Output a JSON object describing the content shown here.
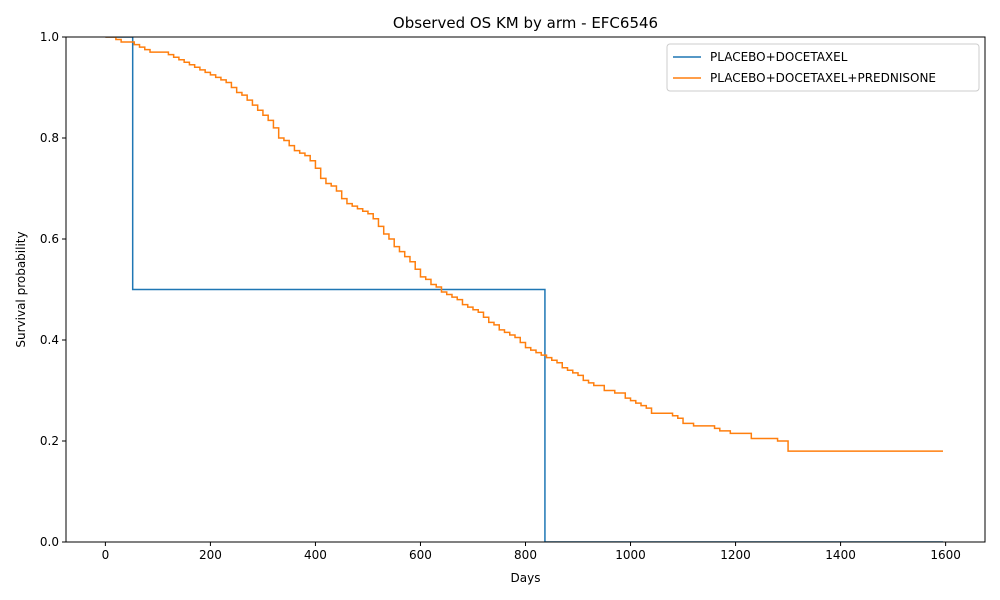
{
  "chart_data": {
    "type": "line",
    "step": "post",
    "title": "Observed OS KM by arm - EFC6546",
    "xlabel": "Days",
    "ylabel": "Survival probability",
    "xlim": [
      -75,
      1675
    ],
    "ylim": [
      0,
      1.0
    ],
    "xticks": [
      0,
      200,
      400,
      600,
      800,
      1000,
      1200,
      1400,
      1600
    ],
    "yticks": [
      0.0,
      0.2,
      0.4,
      0.6,
      0.8,
      1.0
    ],
    "xtick_labels": [
      "0",
      "200",
      "400",
      "600",
      "800",
      "1000",
      "1200",
      "1400",
      "1600"
    ],
    "ytick_labels": [
      "0.0",
      "0.2",
      "0.4",
      "0.6",
      "0.8",
      "1.0"
    ],
    "grid": false,
    "legend_position": "top-right",
    "series": [
      {
        "name": "PLACEBO+DOCETAXEL",
        "color": "#1f77b4",
        "x": [
          0,
          52,
          837,
          1595
        ],
        "y": [
          1.0,
          0.5,
          0.0,
          0.0
        ]
      },
      {
        "name": "PLACEBO+DOCETAXEL+PREDNISONE",
        "color": "#ff7f0e",
        "x": [
          0,
          20,
          30,
          40,
          55,
          65,
          75,
          85,
          95,
          120,
          130,
          140,
          150,
          160,
          170,
          180,
          190,
          200,
          210,
          220,
          230,
          240,
          250,
          260,
          270,
          280,
          290,
          300,
          310,
          320,
          330,
          340,
          350,
          360,
          370,
          380,
          390,
          400,
          410,
          420,
          430,
          440,
          450,
          460,
          470,
          480,
          490,
          500,
          510,
          520,
          530,
          540,
          550,
          560,
          570,
          580,
          590,
          600,
          610,
          620,
          630,
          640,
          650,
          660,
          670,
          680,
          690,
          700,
          710,
          720,
          730,
          740,
          750,
          760,
          770,
          780,
          790,
          800,
          810,
          820,
          830,
          840,
          850,
          860,
          870,
          880,
          890,
          900,
          910,
          920,
          930,
          950,
          970,
          990,
          1000,
          1010,
          1020,
          1030,
          1040,
          1060,
          1080,
          1090,
          1100,
          1120,
          1160,
          1170,
          1190,
          1230,
          1280,
          1300,
          1595
        ],
        "y": [
          1.0,
          0.995,
          0.99,
          0.99,
          0.985,
          0.98,
          0.975,
          0.97,
          0.97,
          0.965,
          0.96,
          0.955,
          0.95,
          0.945,
          0.94,
          0.935,
          0.93,
          0.925,
          0.92,
          0.915,
          0.91,
          0.9,
          0.89,
          0.885,
          0.875,
          0.865,
          0.855,
          0.845,
          0.835,
          0.82,
          0.8,
          0.795,
          0.785,
          0.775,
          0.77,
          0.765,
          0.755,
          0.74,
          0.72,
          0.71,
          0.705,
          0.695,
          0.68,
          0.67,
          0.665,
          0.66,
          0.655,
          0.65,
          0.64,
          0.625,
          0.61,
          0.6,
          0.585,
          0.575,
          0.565,
          0.555,
          0.54,
          0.525,
          0.52,
          0.51,
          0.505,
          0.495,
          0.49,
          0.485,
          0.48,
          0.47,
          0.465,
          0.46,
          0.455,
          0.445,
          0.435,
          0.43,
          0.42,
          0.415,
          0.41,
          0.405,
          0.395,
          0.385,
          0.38,
          0.375,
          0.37,
          0.365,
          0.36,
          0.355,
          0.345,
          0.34,
          0.335,
          0.33,
          0.32,
          0.315,
          0.31,
          0.3,
          0.295,
          0.285,
          0.28,
          0.275,
          0.27,
          0.265,
          0.255,
          0.255,
          0.25,
          0.245,
          0.235,
          0.23,
          0.225,
          0.22,
          0.215,
          0.205,
          0.2,
          0.18,
          0.18
        ]
      }
    ]
  }
}
